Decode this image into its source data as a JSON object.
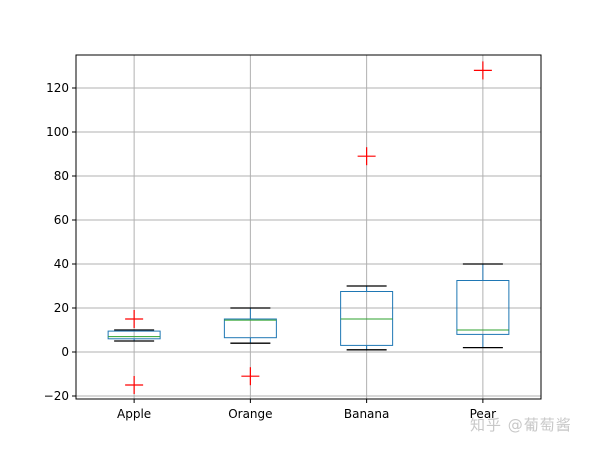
{
  "chart_data": {
    "type": "box",
    "title": "",
    "xlabel": "",
    "ylabel": "",
    "categories": [
      "Apple",
      "Orange",
      "Banana",
      "Pear"
    ],
    "ylim": [
      -21.4,
      135
    ],
    "yticks": [
      -20,
      0,
      20,
      40,
      60,
      80,
      100,
      120
    ],
    "ytick_labels": [
      "−20",
      "0",
      "20",
      "40",
      "60",
      "80",
      "100",
      "120"
    ],
    "grid": true,
    "legend": null,
    "boxes": [
      {
        "name": "Apple",
        "whisker_low": 5,
        "q1": 6,
        "median": 7,
        "q3": 9.5,
        "whisker_high": 10,
        "fliers": [
          15,
          -15
        ]
      },
      {
        "name": "Orange",
        "whisker_low": 4,
        "q1": 6.5,
        "median": 14.5,
        "q3": 15,
        "whisker_high": 20,
        "fliers": [
          -11
        ]
      },
      {
        "name": "Banana",
        "whisker_low": 1,
        "q1": 3,
        "median": 15,
        "q3": 27.5,
        "whisker_high": 30,
        "fliers": [
          89
        ]
      },
      {
        "name": "Pear",
        "whisker_low": 2,
        "q1": 8,
        "median": 10,
        "q3": 32.5,
        "whisker_high": 40,
        "fliers": [
          128
        ]
      }
    ],
    "colors": {
      "box": "#1f77b4",
      "median": "#2ca02c",
      "whisker_cap": "#000000",
      "flier": "#ff0000",
      "grid": "#b0b0b0"
    }
  },
  "watermark": "知乎 @葡萄酱"
}
